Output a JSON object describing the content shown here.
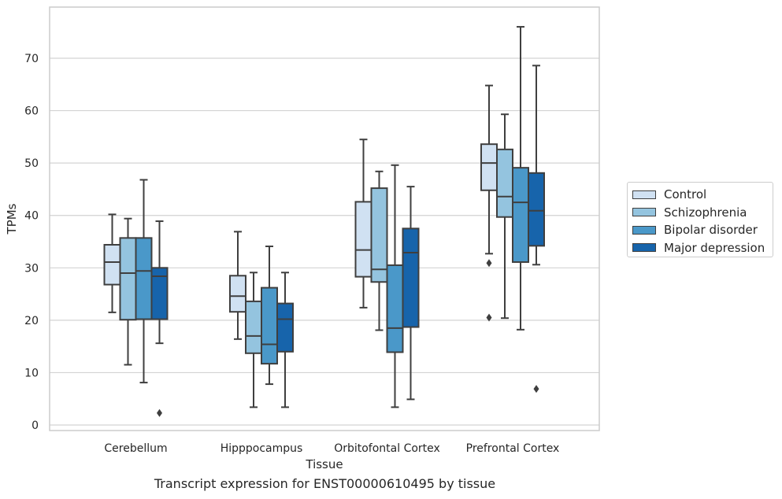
{
  "chart_data": {
    "type": "box",
    "title": "",
    "caption": "Transcript expression for ENST00000610495 by tissue",
    "xlabel": "Tissue",
    "ylabel": "TPMs",
    "ylim": [
      -1,
      80
    ],
    "yticks": [
      0,
      10,
      20,
      30,
      40,
      50,
      60,
      70
    ],
    "grid": true,
    "legend_position": "right",
    "categories": [
      "Cerebellum",
      "Hipppocampus",
      "Orbitofontal Cortex",
      "Prefrontal Cortex"
    ],
    "series": [
      {
        "name": "Control",
        "color": "#d0e1f2",
        "boxes": [
          {
            "min": 21.5,
            "q1": 26.8,
            "median": 31.1,
            "q3": 34.4,
            "max": 40.2,
            "outliers": []
          },
          {
            "min": 16.4,
            "q1": 21.6,
            "median": 24.6,
            "q3": 28.5,
            "max": 36.9,
            "outliers": []
          },
          {
            "min": 22.4,
            "q1": 28.3,
            "median": 33.4,
            "q3": 42.6,
            "max": 54.5,
            "outliers": []
          },
          {
            "min": 32.7,
            "q1": 44.8,
            "median": 50.0,
            "q3": 53.6,
            "max": 64.8,
            "outliers": [
              30.9,
              20.5
            ]
          }
        ]
      },
      {
        "name": "Schizophrenia",
        "color": "#94c4df",
        "boxes": [
          {
            "min": 11.5,
            "q1": 20.1,
            "median": 29.0,
            "q3": 35.7,
            "max": 39.4,
            "outliers": []
          },
          {
            "min": 3.4,
            "q1": 13.7,
            "median": 17.0,
            "q3": 23.6,
            "max": 29.1,
            "outliers": []
          },
          {
            "min": 18.1,
            "q1": 27.3,
            "median": 29.7,
            "q3": 45.2,
            "max": 48.4,
            "outliers": []
          },
          {
            "min": 20.4,
            "q1": 39.7,
            "median": 43.6,
            "q3": 52.6,
            "max": 59.3,
            "outliers": []
          }
        ]
      },
      {
        "name": "Bipolar disorder",
        "color": "#4a98c9",
        "boxes": [
          {
            "min": 8.1,
            "q1": 20.2,
            "median": 29.4,
            "q3": 35.7,
            "max": 46.8,
            "outliers": []
          },
          {
            "min": 7.8,
            "q1": 11.7,
            "median": 15.4,
            "q3": 26.2,
            "max": 34.1,
            "outliers": []
          },
          {
            "min": 3.4,
            "q1": 13.9,
            "median": 18.5,
            "q3": 30.5,
            "max": 49.6,
            "outliers": []
          },
          {
            "min": 18.2,
            "q1": 31.1,
            "median": 42.5,
            "q3": 49.1,
            "max": 76.0,
            "outliers": []
          }
        ]
      },
      {
        "name": "Major depression",
        "color": "#1764ab",
        "boxes": [
          {
            "min": 15.6,
            "q1": 20.2,
            "median": 28.4,
            "q3": 30.0,
            "max": 38.9,
            "outliers": [
              2.3
            ]
          },
          {
            "min": 3.4,
            "q1": 14.0,
            "median": 20.2,
            "q3": 23.2,
            "max": 29.1,
            "outliers": []
          },
          {
            "min": 4.9,
            "q1": 18.7,
            "median": 32.9,
            "q3": 37.5,
            "max": 45.5,
            "outliers": []
          },
          {
            "min": 30.6,
            "q1": 34.2,
            "median": 40.9,
            "q3": 48.1,
            "max": 68.6,
            "outliers": [
              6.9
            ]
          }
        ]
      }
    ]
  }
}
